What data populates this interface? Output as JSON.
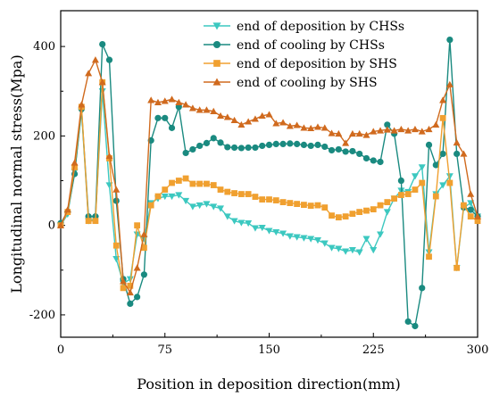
{
  "chart_data": {
    "type": "line",
    "xlabel": "Position in deposition direction(mm)",
    "ylabel": "Longitudinal normal stress(Mpa)",
    "xlim": [
      0,
      300
    ],
    "ylim": [
      -250,
      480
    ],
    "xticks": [
      0,
      75,
      150,
      225,
      300
    ],
    "yticks": [
      -200,
      0,
      200,
      400
    ],
    "grid": false,
    "legend_position": "top-right",
    "series": [
      {
        "name": "end of deposition by CHSs",
        "color": "#3cc8c0",
        "marker": "triangle-down",
        "x": [
          0,
          5,
          10,
          15,
          20,
          25,
          30,
          35,
          40,
          45,
          50,
          55,
          60,
          65,
          70,
          75,
          80,
          85,
          90,
          95,
          100,
          105,
          110,
          115,
          120,
          125,
          130,
          135,
          140,
          145,
          150,
          155,
          160,
          165,
          170,
          175,
          180,
          185,
          190,
          195,
          200,
          205,
          210,
          215,
          220,
          225,
          230,
          235,
          240,
          245,
          250,
          255,
          260,
          265,
          270,
          275,
          280,
          285,
          290,
          295,
          300
        ],
        "values": [
          0,
          25,
          120,
          255,
          10,
          15,
          300,
          90,
          -75,
          -130,
          -120,
          -20,
          -30,
          50,
          60,
          65,
          65,
          68,
          55,
          42,
          45,
          48,
          42,
          38,
          20,
          10,
          6,
          5,
          -6,
          -5,
          -12,
          -15,
          -18,
          -24,
          -26,
          -28,
          -30,
          -33,
          -40,
          -50,
          -52,
          -58,
          -55,
          -60,
          -30,
          -55,
          -20,
          30,
          60,
          78,
          75,
          110,
          130,
          -60,
          70,
          90,
          110,
          -95,
          40,
          50,
          20
        ]
      },
      {
        "name": "end of cooling by CHSs",
        "color": "#1a8a80",
        "marker": "circle",
        "x": [
          0,
          5,
          10,
          15,
          20,
          25,
          30,
          35,
          40,
          45,
          50,
          55,
          60,
          65,
          70,
          75,
          80,
          85,
          90,
          95,
          100,
          105,
          110,
          115,
          120,
          125,
          130,
          135,
          140,
          145,
          150,
          155,
          160,
          165,
          170,
          175,
          180,
          185,
          190,
          195,
          200,
          205,
          210,
          215,
          220,
          225,
          230,
          235,
          240,
          245,
          250,
          255,
          260,
          265,
          270,
          275,
          280,
          285,
          290,
          295,
          300
        ],
        "values": [
          5,
          30,
          115,
          260,
          20,
          20,
          405,
          370,
          55,
          -120,
          -175,
          -160,
          -110,
          190,
          240,
          240,
          218,
          265,
          162,
          170,
          178,
          184,
          195,
          185,
          175,
          174,
          173,
          174,
          174,
          178,
          180,
          182,
          182,
          183,
          182,
          180,
          178,
          180,
          176,
          168,
          170,
          165,
          166,
          160,
          150,
          145,
          142,
          225,
          205,
          100,
          -215,
          -225,
          -140,
          180,
          135,
          160,
          415,
          160,
          40,
          35,
          20
        ]
      },
      {
        "name": "end of deposition by SHS",
        "color": "#f0a030",
        "marker": "square",
        "x": [
          0,
          5,
          10,
          15,
          20,
          25,
          30,
          35,
          40,
          45,
          50,
          55,
          60,
          65,
          70,
          75,
          80,
          85,
          90,
          95,
          100,
          105,
          110,
          115,
          120,
          125,
          130,
          135,
          140,
          145,
          150,
          155,
          160,
          165,
          170,
          175,
          180,
          185,
          190,
          195,
          200,
          205,
          210,
          215,
          220,
          225,
          230,
          235,
          240,
          245,
          250,
          255,
          260,
          265,
          270,
          275,
          280,
          285,
          290,
          295,
          300
        ],
        "values": [
          0,
          30,
          130,
          265,
          10,
          10,
          320,
          150,
          -45,
          -140,
          -135,
          0,
          -50,
          45,
          65,
          80,
          95,
          100,
          105,
          93,
          93,
          93,
          90,
          80,
          75,
          72,
          70,
          70,
          64,
          58,
          58,
          56,
          52,
          50,
          48,
          46,
          44,
          45,
          40,
          22,
          18,
          20,
          26,
          30,
          33,
          36,
          45,
          52,
          60,
          68,
          70,
          80,
          95,
          -70,
          65,
          240,
          95,
          -95,
          45,
          20,
          10
        ]
      },
      {
        "name": "end of cooling by SHS",
        "color": "#d06a1e",
        "marker": "triangle-up",
        "x": [
          0,
          5,
          10,
          15,
          20,
          25,
          30,
          35,
          40,
          45,
          50,
          55,
          60,
          65,
          70,
          75,
          80,
          85,
          90,
          95,
          100,
          105,
          110,
          115,
          120,
          125,
          130,
          135,
          140,
          145,
          150,
          155,
          160,
          165,
          170,
          175,
          180,
          185,
          190,
          195,
          200,
          205,
          210,
          215,
          220,
          225,
          230,
          235,
          240,
          245,
          250,
          255,
          260,
          265,
          270,
          275,
          280,
          285,
          290,
          295,
          300
        ],
        "values": [
          0,
          35,
          140,
          270,
          340,
          370,
          320,
          155,
          80,
          -125,
          -150,
          -95,
          -20,
          280,
          275,
          278,
          282,
          275,
          270,
          262,
          258,
          258,
          255,
          245,
          242,
          235,
          225,
          232,
          238,
          245,
          248,
          228,
          230,
          222,
          224,
          218,
          217,
          220,
          218,
          206,
          205,
          184,
          205,
          205,
          202,
          210,
          212,
          214,
          212,
          215,
          212,
          215,
          210,
          215,
          225,
          280,
          315,
          185,
          160,
          70,
          20
        ]
      }
    ]
  }
}
